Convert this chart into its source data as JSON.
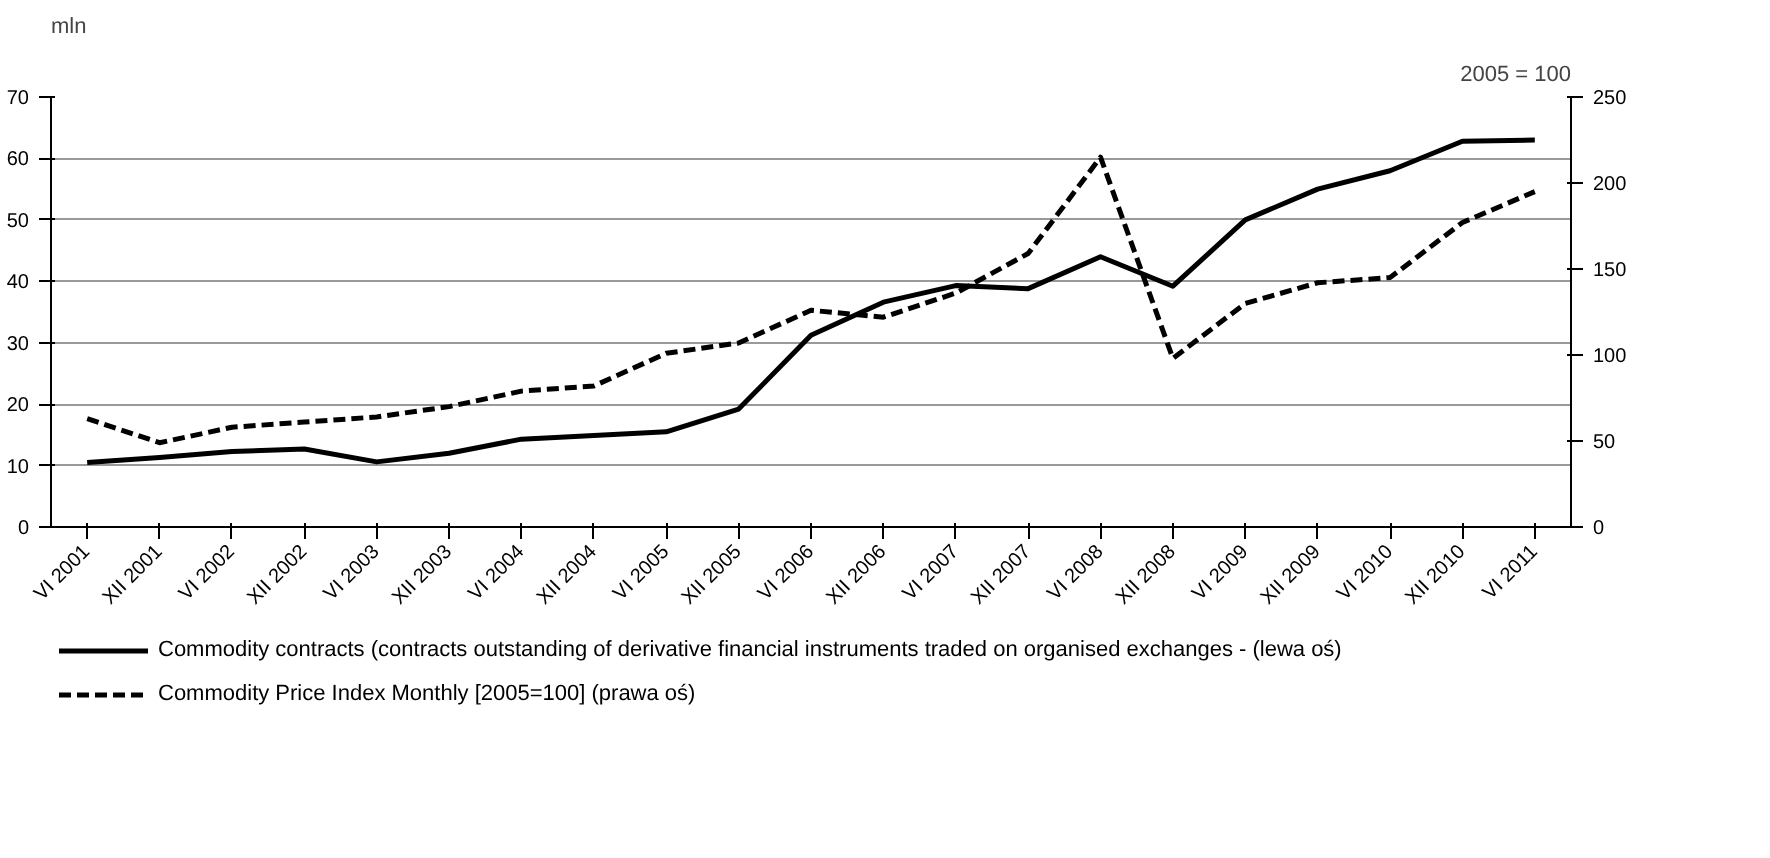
{
  "chart_data": {
    "type": "line",
    "ylabel": "mln",
    "y2label": "2005 = 100",
    "categories": [
      "VI 2001",
      "XII 2001",
      "VI 2002",
      "XII 2002",
      "VI 2003",
      "XII 2003",
      "VI 2004",
      "XII 2004",
      "VI 2005",
      "XII 2005",
      "VI 2006",
      "XII 2006",
      "VI 2007",
      "XII 2007",
      "VI 2008",
      "XII 2008",
      "VI 2009",
      "XII 2009",
      "VI 2010",
      "XII 2010",
      "VI 2011"
    ],
    "series": [
      {
        "name": "Commodity contracts (contracts outstanding of derivative financial instruments traded on organised exchanges - (lewa oś)",
        "color": "#000000",
        "line_style": "solid",
        "values": [
          10.5,
          11.3,
          12.3,
          12.7,
          10.6,
          12,
          14.3,
          14.9,
          15.5,
          19.2,
          31.2,
          36.6,
          39.3,
          38.8,
          44,
          39.2,
          50,
          55,
          58,
          62.8,
          63
        ]
      },
      {
        "name": "Commodity Price Index Monthly [2005=100] (prawa oś)",
        "color": "#000000",
        "line_style": "dashed",
        "axis": "y2",
        "values": [
          63,
          49,
          58,
          61,
          64,
          70,
          79,
          82,
          101,
          107,
          126,
          122,
          136,
          159,
          215,
          98,
          130,
          142,
          145,
          177,
          195
        ]
      }
    ],
    "ylim": [
      0,
      70
    ],
    "yticks": [
      0,
      10,
      20,
      30,
      40,
      50,
      60,
      70
    ],
    "y2lim": [
      0,
      250
    ],
    "y2ticks": [
      0,
      50,
      100,
      150,
      200,
      250
    ],
    "grid": "y",
    "legend": "bottom"
  }
}
